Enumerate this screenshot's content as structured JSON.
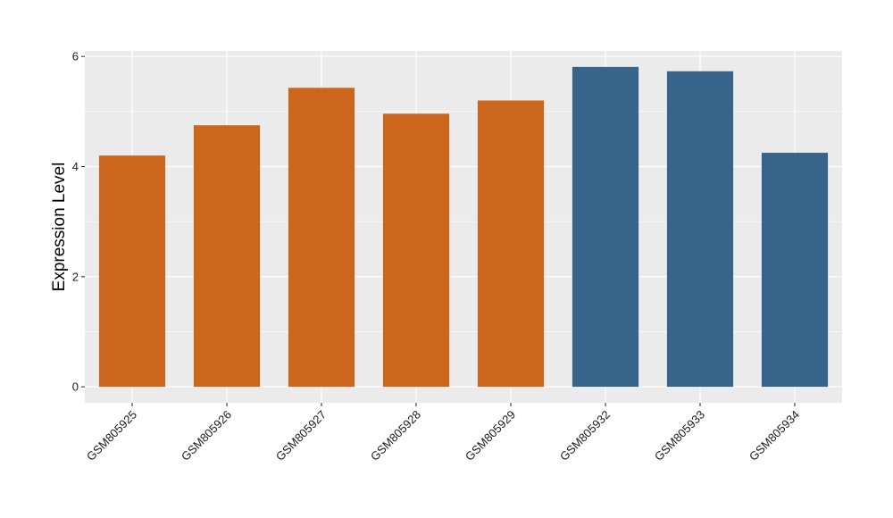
{
  "chart_data": {
    "type": "bar",
    "title": "",
    "xlabel": "",
    "ylabel": "Expression Level",
    "categories": [
      "GSM805925",
      "GSM805926",
      "GSM805927",
      "GSM805928",
      "GSM805929",
      "GSM805932",
      "GSM805933",
      "GSM805934"
    ],
    "values": [
      4.2,
      4.75,
      5.43,
      4.96,
      5.2,
      5.81,
      5.73,
      4.25
    ],
    "bar_colors": [
      "#CC661C",
      "#CC661C",
      "#CC661C",
      "#CC661C",
      "#CC661C",
      "#36648B",
      "#36648B",
      "#36648B"
    ],
    "y_ticks": [
      0,
      2,
      4,
      6
    ],
    "ylim": [
      -0.29,
      6.1
    ],
    "grid": true,
    "legend": "none",
    "panel_background": "#EBEBEB",
    "grid_color": "#FFFFFF"
  }
}
